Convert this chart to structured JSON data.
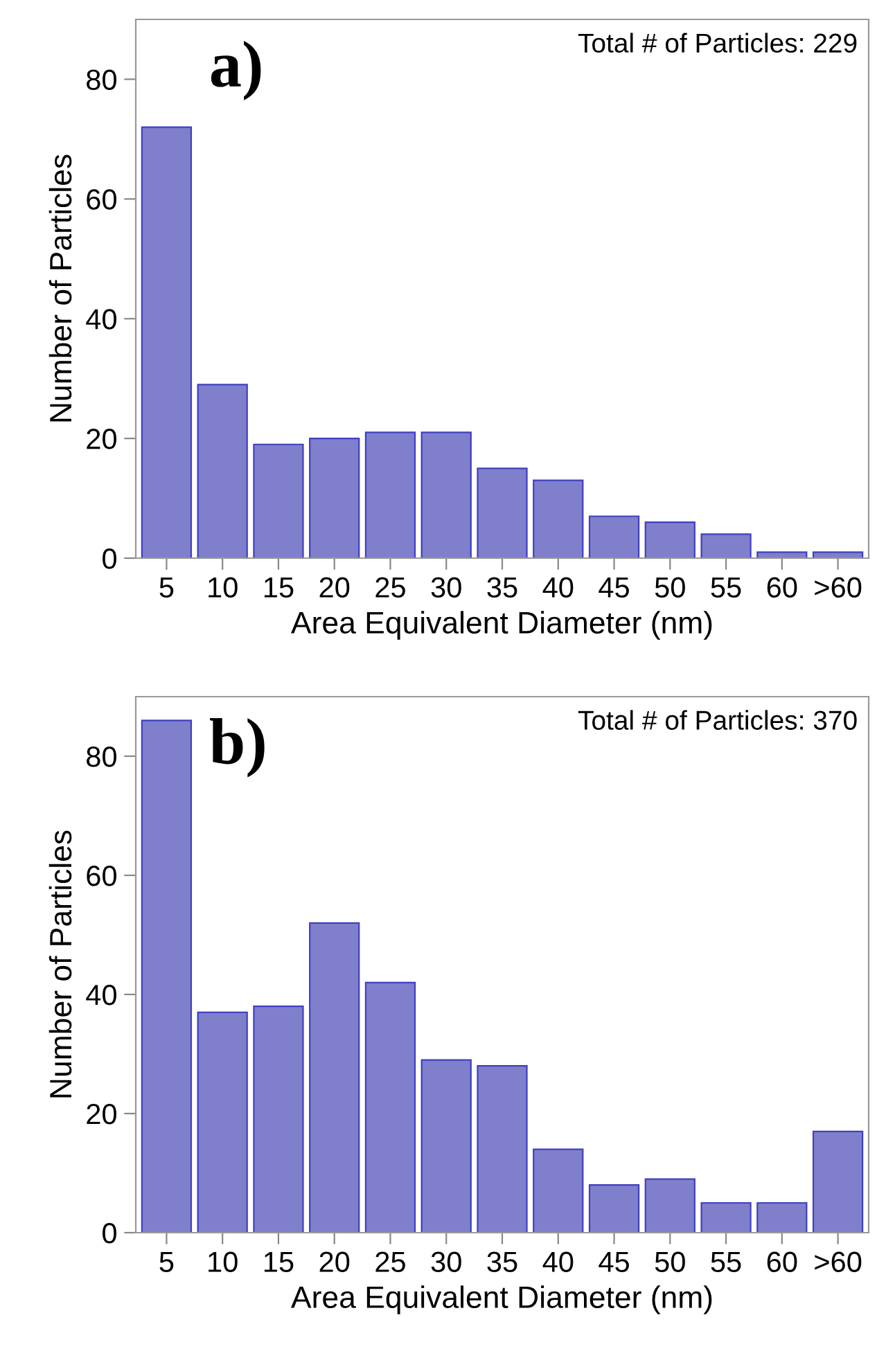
{
  "chart_data": [
    {
      "type": "bar",
      "categories": [
        "5",
        "10",
        "15",
        "20",
        "25",
        "30",
        "35",
        "40",
        "45",
        "50",
        "55",
        "60",
        ">60"
      ],
      "values": [
        72,
        29,
        19,
        20,
        21,
        21,
        15,
        13,
        7,
        6,
        4,
        1,
        1
      ],
      "color": "#7f7fcc",
      "xlabel": "Area Equivalent Diameter (nm)",
      "ylabel": "Number of Particles",
      "ylim": [
        0,
        90
      ],
      "yticks": [
        0,
        20,
        40,
        60,
        80
      ],
      "grid": false,
      "legend": false,
      "annotations": [
        "a)",
        "Total # of Particles: 229"
      ]
    },
    {
      "type": "bar",
      "categories": [
        "5",
        "10",
        "15",
        "20",
        "25",
        "30",
        "35",
        "40",
        "45",
        "50",
        "55",
        "60",
        ">60"
      ],
      "values": [
        86,
        37,
        38,
        52,
        42,
        29,
        28,
        14,
        8,
        9,
        5,
        5,
        17
      ],
      "color": "#7f7fcc",
      "xlabel": "Area Equivalent Diameter (nm)",
      "ylabel": "Number of Particles",
      "ylim": [
        0,
        90
      ],
      "yticks": [
        0,
        20,
        40,
        60,
        80
      ],
      "grid": false,
      "legend": false,
      "annotations": [
        "b)",
        "Total # of Particles: 370"
      ]
    }
  ]
}
